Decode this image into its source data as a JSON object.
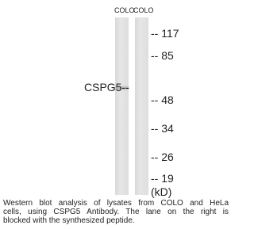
{
  "lanes": [
    "COLO",
    "COLO"
  ],
  "band_label": "CSPG5--",
  "markers": [
    "-- 117",
    "-- 85",
    "-- 48",
    "-- 34",
    "-- 26",
    "-- 19"
  ],
  "unit": "(kD)",
  "caption": [
    "Western blot analysis of lysates from COLO and HeLa",
    "cells, using CSPG5 Antibody. The lane on the right is",
    "blocked with the synthesized peptide."
  ]
}
